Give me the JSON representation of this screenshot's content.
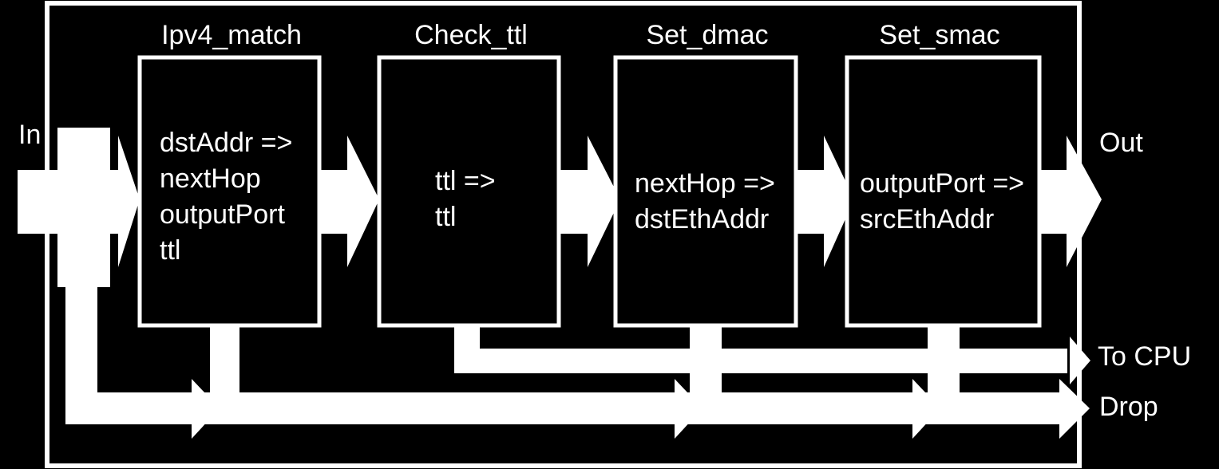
{
  "colors": {
    "background": "#000000",
    "foreground": "#ffffff"
  },
  "io": {
    "in_label": "In",
    "out_label": "Out",
    "to_cpu_label": "To CPU",
    "drop_label": "Drop"
  },
  "stages": [
    {
      "title": "Ipv4_match",
      "lines": [
        "dstAddr =>",
        "nextHop",
        "outputPort",
        "ttl"
      ]
    },
    {
      "title": "Check_ttl",
      "lines": [
        "ttl =>",
        "ttl"
      ]
    },
    {
      "title": "Set_dmac",
      "lines": [
        "nextHop =>",
        "dstEthAddr"
      ]
    },
    {
      "title": "Set_smac",
      "lines": [
        "outputPort =>",
        "srcEthAddr"
      ]
    }
  ]
}
